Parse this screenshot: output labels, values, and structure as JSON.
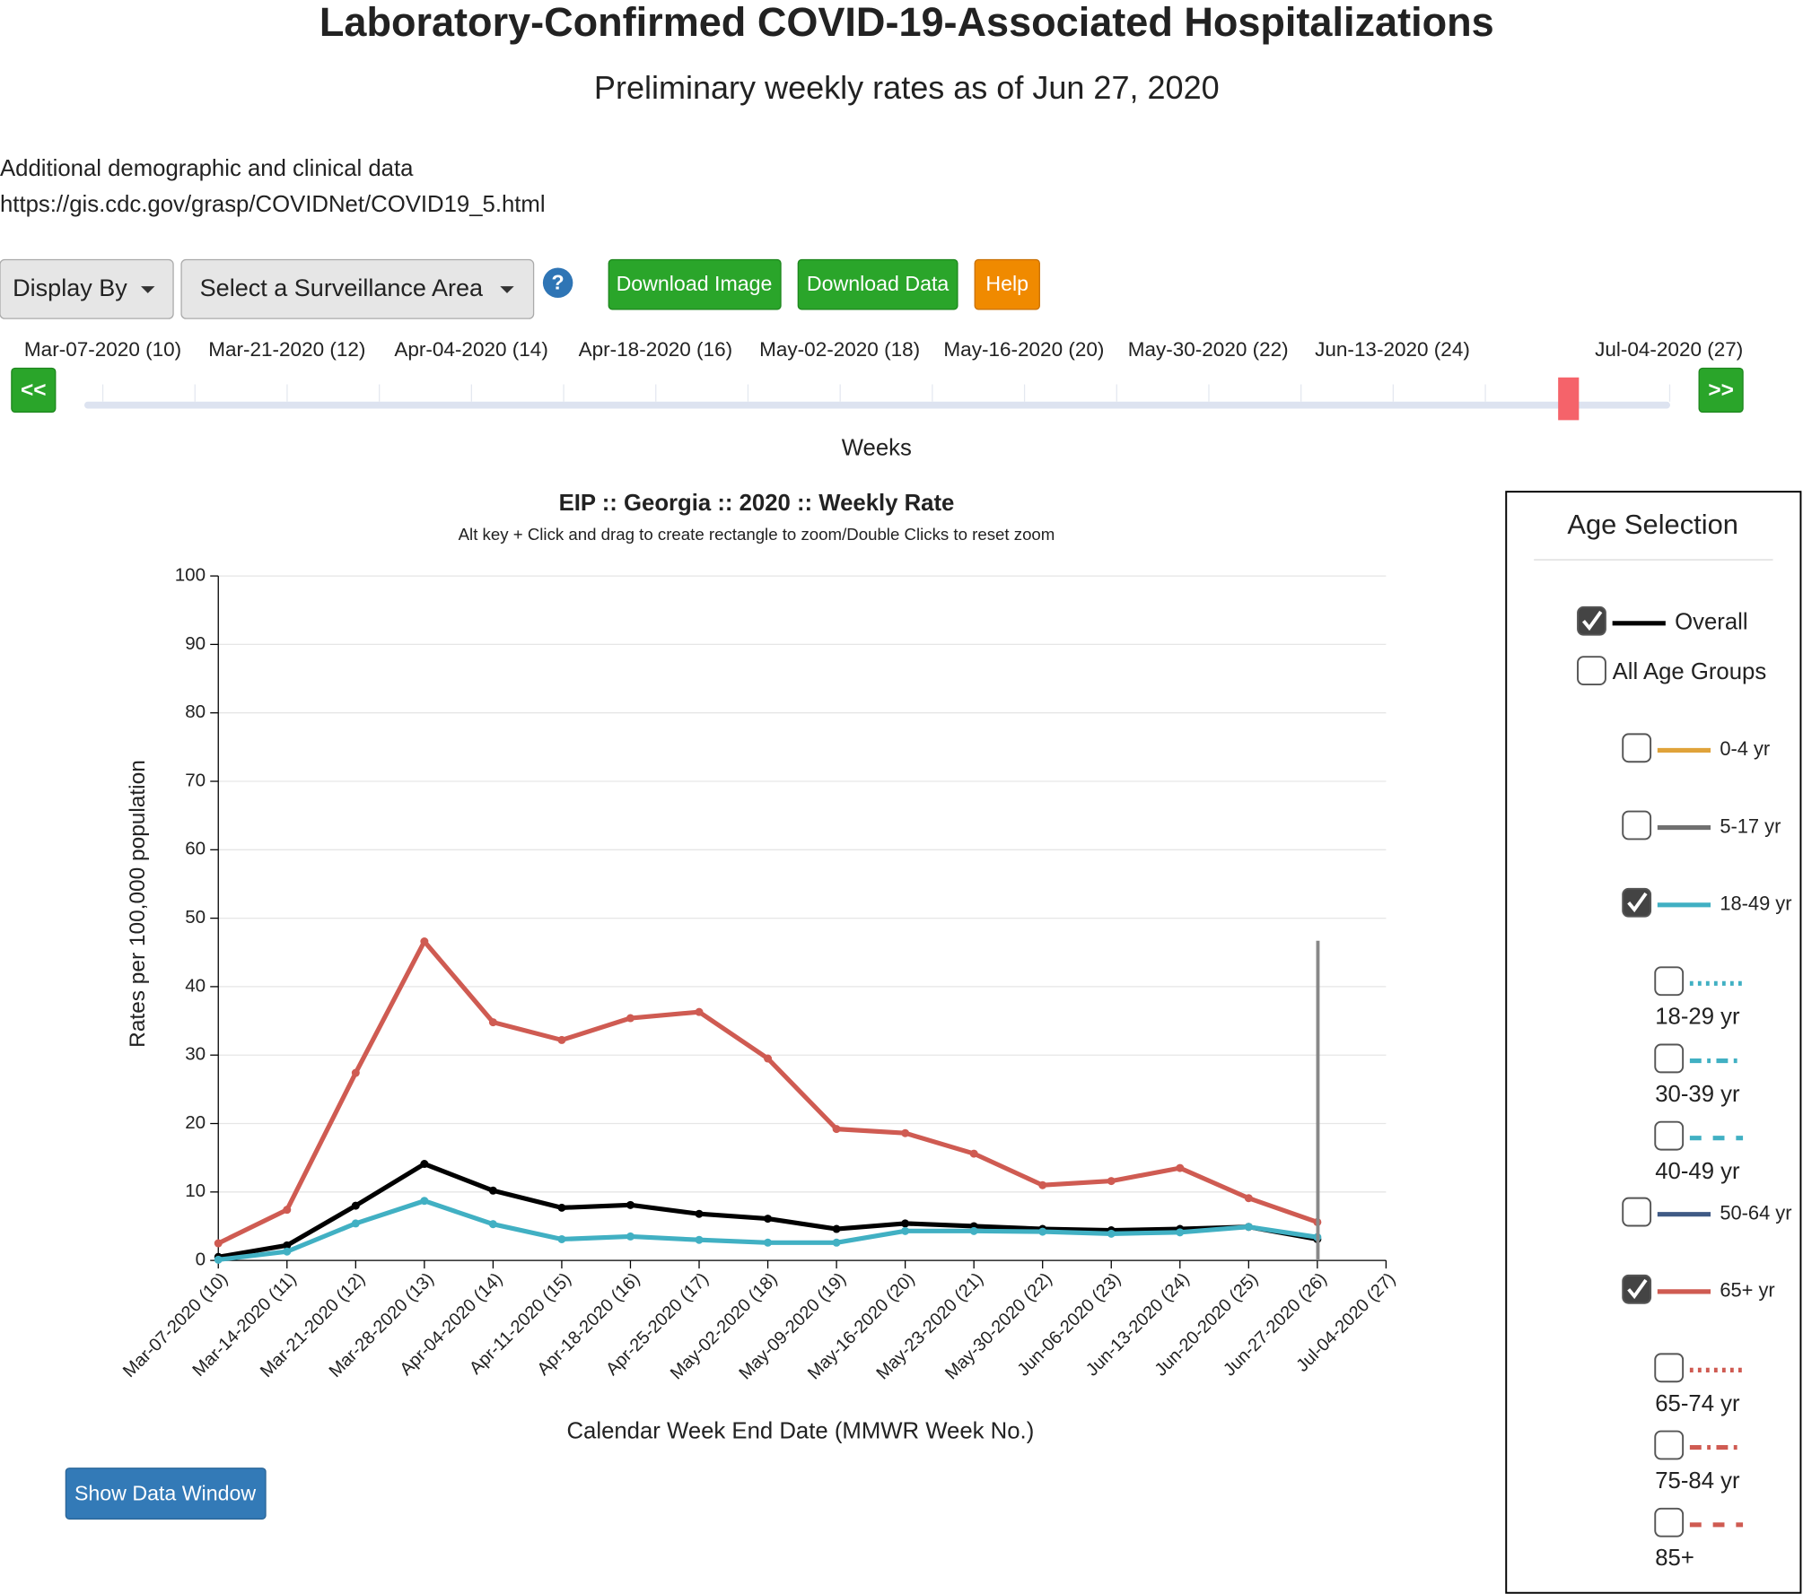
{
  "header": {
    "title": "Laboratory-Confirmed COVID-19-Associated Hospitalizations",
    "subtitle": "Preliminary weekly rates as of Jun 27, 2020",
    "info_text": "Additional demographic and clinical data",
    "info_link": "https://gis.cdc.gov/grasp/COVIDNet/COVID19_5.html"
  },
  "controls": {
    "display_by": "Display By",
    "surveillance_area": "Select a Surveillance Area",
    "help_icon": "?",
    "download_image": "Download Image",
    "download_data": "Download Data",
    "help": "Help",
    "show_data_window": "Show Data Window"
  },
  "slider": {
    "prev": "<<",
    "next": ">>",
    "labels": [
      "Mar-07-2020 (10)",
      "Mar-21-2020 (12)",
      "Apr-04-2020 (14)",
      "Apr-18-2020 (16)",
      "May-02-2020 (18)",
      "May-16-2020 (20)",
      "May-30-2020 (22)",
      "Jun-13-2020 (24)",
      "Jul-04-2020 (27)"
    ],
    "axis_label": "Weeks"
  },
  "chart_data": {
    "type": "line",
    "title": "EIP :: Georgia :: 2020 :: Weekly Rate",
    "subtitle": "Alt key + Click and drag to create rectangle to zoom/Double Clicks to reset zoom",
    "x_label": "Calendar Week End Date (MMWR Week No.)",
    "y_label": "Rates per 100,000 population",
    "categories": [
      "Mar-07-2020 (10)",
      "Mar-14-2020 (11)",
      "Mar-21-2020 (12)",
      "Mar-28-2020 (13)",
      "Apr-04-2020 (14)",
      "Apr-11-2020 (15)",
      "Apr-18-2020 (16)",
      "Apr-25-2020 (17)",
      "May-02-2020 (18)",
      "May-09-2020 (19)",
      "May-16-2020 (20)",
      "May-23-2020 (21)",
      "May-30-2020 (22)",
      "Jun-06-2020 (23)",
      "Jun-13-2020 (24)",
      "Jun-20-2020 (25)",
      "Jun-27-2020 (26)",
      "Jul-04-2020 (27)"
    ],
    "series": [
      {
        "name": "Overall",
        "color": "#000000",
        "values": [
          0.5,
          2.2,
          8.0,
          14.1,
          10.2,
          7.7,
          8.1,
          6.8,
          6.1,
          4.6,
          5.4,
          5.0,
          4.6,
          4.4,
          4.6,
          4.9,
          3.1,
          null
        ]
      },
      {
        "name": "18-49 yr",
        "color": "#41b0c3",
        "values": [
          0.1,
          1.3,
          5.4,
          8.7,
          5.3,
          3.1,
          3.5,
          3.0,
          2.6,
          2.6,
          4.3,
          4.3,
          4.2,
          3.9,
          4.1,
          4.9,
          3.4,
          null
        ]
      },
      {
        "name": "65+ yr",
        "color": "#cf5b52",
        "values": [
          2.5,
          7.4,
          27.4,
          46.6,
          34.8,
          32.2,
          35.4,
          36.3,
          29.5,
          19.2,
          18.6,
          15.6,
          11.0,
          11.6,
          13.5,
          9.1,
          5.6,
          null
        ]
      }
    ],
    "ylim": [
      0,
      100
    ],
    "yticks": [
      0,
      10,
      20,
      30,
      40,
      50,
      60,
      70,
      80,
      90,
      100
    ],
    "grid": true,
    "age_selection": {
      "title": "Age Selection",
      "items": [
        {
          "series": 0,
          "checked": true,
          "indent": 0
        },
        {
          "label": "All Age Groups",
          "checked": false,
          "indent": 0
        },
        {
          "label": "0-4 yr",
          "checked": false,
          "indent": 1,
          "color": "#e0a33a",
          "dash": "solid"
        },
        {
          "label": "5-17 yr",
          "checked": false,
          "indent": 1,
          "color": "#707070",
          "dash": "solid"
        },
        {
          "series": 1,
          "checked": true,
          "indent": 1
        },
        {
          "label": "18-29 yr",
          "checked": false,
          "indent": 2,
          "color": "#41b0c3",
          "dash": "dotted"
        },
        {
          "label": "30-39 yr",
          "checked": false,
          "indent": 2,
          "color": "#41b0c3",
          "dash": "dashdot"
        },
        {
          "label": "40-49 yr",
          "checked": false,
          "indent": 2,
          "color": "#41b0c3",
          "dash": "dashed"
        },
        {
          "label": "50-64 yr",
          "checked": false,
          "indent": 1,
          "color": "#3f5a85",
          "dash": "solid"
        },
        {
          "series": 2,
          "checked": true,
          "indent": 1
        },
        {
          "label": "65-74 yr",
          "checked": false,
          "indent": 2,
          "color": "#cf5b52",
          "dash": "dotted"
        },
        {
          "label": "75-84 yr",
          "checked": false,
          "indent": 2,
          "color": "#cf5b52",
          "dash": "dashdot"
        },
        {
          "label": "85+",
          "checked": false,
          "indent": 2,
          "color": "#cf5b52",
          "dash": "dashed"
        }
      ]
    }
  }
}
